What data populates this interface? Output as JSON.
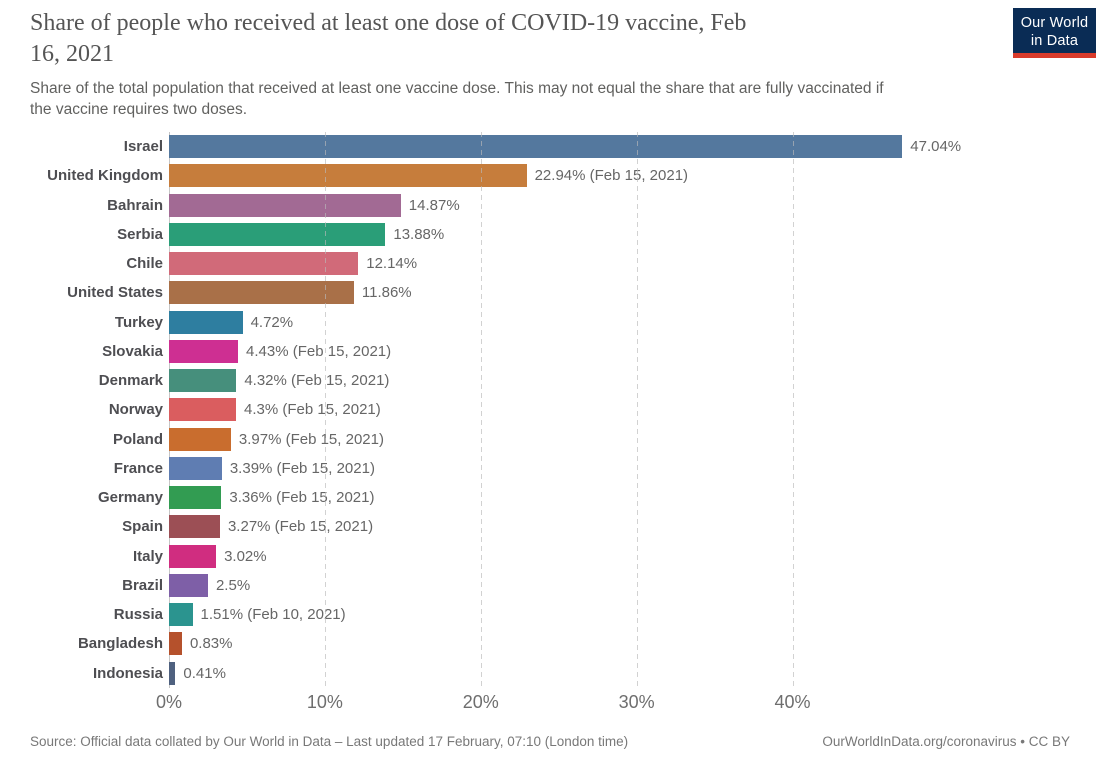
{
  "header": {
    "title_lines": [
      "Share of people who received at least one dose of COVID-19 vaccine, Feb",
      "16, 2021"
    ],
    "subtitle_lines": [
      "Share of the total population that received at least one vaccine dose. This may not equal the share that are fully vaccinated if",
      "the vaccine requires two doses."
    ],
    "logo": {
      "line1": "Our World",
      "line2": "in Data",
      "bg_color": "#0a2c55",
      "accent_color": "#d93b2b"
    }
  },
  "chart_data": {
    "type": "bar",
    "orientation": "horizontal",
    "title": "Share of people who received at least one dose of COVID-19 vaccine, Feb 16, 2021",
    "xlabel": "",
    "ylabel": "",
    "xlim": [
      0,
      57.8
    ],
    "grid": "vertical-dashed",
    "x_ticks": [
      {
        "value": 0,
        "label": "0%"
      },
      {
        "value": 10,
        "label": "10%"
      },
      {
        "value": 20,
        "label": "20%"
      },
      {
        "value": 30,
        "label": "30%"
      },
      {
        "value": 40,
        "label": "40%"
      }
    ],
    "bars": [
      {
        "country": "Israel",
        "value": 47.04,
        "label": "47.04%",
        "color": "#54789e"
      },
      {
        "country": "United Kingdom",
        "value": 22.94,
        "label": "22.94% (Feb 15, 2021)",
        "color": "#c67d3c"
      },
      {
        "country": "Bahrain",
        "value": 14.87,
        "label": "14.87%",
        "color": "#a26a94"
      },
      {
        "country": "Serbia",
        "value": 13.88,
        "label": "13.88%",
        "color": "#2a9e78"
      },
      {
        "country": "Chile",
        "value": 12.14,
        "label": "12.14%",
        "color": "#d16a79"
      },
      {
        "country": "United States",
        "value": 11.86,
        "label": "11.86%",
        "color": "#a97048"
      },
      {
        "country": "Turkey",
        "value": 4.72,
        "label": "4.72%",
        "color": "#2e7ea0"
      },
      {
        "country": "Slovakia",
        "value": 4.43,
        "label": "4.43% (Feb 15, 2021)",
        "color": "#ce2f92"
      },
      {
        "country": "Denmark",
        "value": 4.32,
        "label": "4.32% (Feb 15, 2021)",
        "color": "#468f7c"
      },
      {
        "country": "Norway",
        "value": 4.3,
        "label": "4.3% (Feb 15, 2021)",
        "color": "#da5d5f"
      },
      {
        "country": "Poland",
        "value": 3.97,
        "label": "3.97% (Feb 15, 2021)",
        "color": "#c96d2e"
      },
      {
        "country": "France",
        "value": 3.39,
        "label": "3.39% (Feb 15, 2021)",
        "color": "#5f7db2"
      },
      {
        "country": "Germany",
        "value": 3.36,
        "label": "3.36% (Feb 15, 2021)",
        "color": "#329c52"
      },
      {
        "country": "Spain",
        "value": 3.27,
        "label": "3.27% (Feb 15, 2021)",
        "color": "#9c4f55"
      },
      {
        "country": "Italy",
        "value": 3.02,
        "label": "3.02%",
        "color": "#d02d80"
      },
      {
        "country": "Brazil",
        "value": 2.5,
        "label": "2.5%",
        "color": "#7e5fa7"
      },
      {
        "country": "Russia",
        "value": 1.51,
        "label": "1.51% (Feb 10, 2021)",
        "color": "#2b948f"
      },
      {
        "country": "Bangladesh",
        "value": 0.83,
        "label": "0.83%",
        "color": "#b5512c"
      },
      {
        "country": "Indonesia",
        "value": 0.41,
        "label": "0.41%",
        "color": "#4f617f"
      }
    ]
  },
  "footer": {
    "source": "Source: Official data collated by Our World in Data – Last updated 17 February, 07:10 (London time)",
    "link": "OurWorldInData.org/coronavirus • CC BY"
  }
}
